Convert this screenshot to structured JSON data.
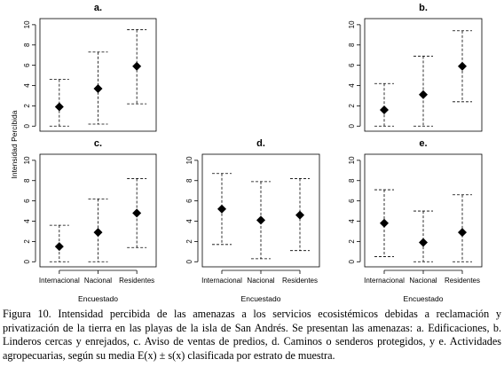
{
  "chart_data": [
    {
      "type": "scatter",
      "panel": "a.",
      "categories": [
        "Internacional",
        "Nacional",
        "Residentes"
      ],
      "mean": [
        1.9,
        3.7,
        5.9
      ],
      "upper": [
        4.6,
        7.3,
        9.5
      ],
      "lower": [
        0.0,
        0.2,
        2.2
      ],
      "ylim": [
        0,
        10
      ],
      "yticks": [
        "0",
        "2",
        "4",
        "6",
        "8",
        "10"
      ],
      "xticks": [],
      "xlabel": "",
      "ylabel": ""
    },
    {
      "type": "scatter",
      "panel": "b.",
      "categories": [
        "Internacional",
        "Nacional",
        "Residentes"
      ],
      "mean": [
        1.6,
        3.1,
        5.9
      ],
      "upper": [
        4.2,
        6.9,
        9.4
      ],
      "lower": [
        0.0,
        0.0,
        2.4
      ],
      "ylim": [
        0,
        10
      ],
      "yticks": [
        "0",
        "2",
        "4",
        "6",
        "8",
        "10"
      ],
      "xticks": [],
      "xlabel": "",
      "ylabel": ""
    },
    {
      "type": "scatter",
      "panel": "c.",
      "categories": [
        "Internacional",
        "Nacional",
        "Residentes"
      ],
      "mean": [
        1.5,
        2.9,
        4.8
      ],
      "upper": [
        3.6,
        6.2,
        8.2
      ],
      "lower": [
        0.0,
        0.0,
        1.4
      ],
      "ylim": [
        0,
        10
      ],
      "yticks": [
        "0",
        "2",
        "4",
        "6",
        "8",
        "10"
      ],
      "xticks": [
        "Internacional",
        "Nacional",
        "Residentes"
      ],
      "xlabel": "Encuestado",
      "ylabel": ""
    },
    {
      "type": "scatter",
      "panel": "d.",
      "categories": [
        "Internacional",
        "Nacional",
        "Residentes"
      ],
      "mean": [
        5.2,
        4.1,
        4.6
      ],
      "upper": [
        8.7,
        7.9,
        8.2
      ],
      "lower": [
        1.7,
        0.3,
        1.1
      ],
      "ylim": [
        0,
        10
      ],
      "yticks": [
        "0",
        "2",
        "4",
        "6",
        "8",
        "10"
      ],
      "xticks": [
        "Internacional",
        "Nacional",
        "Residentes"
      ],
      "xlabel": "Encuestado",
      "ylabel": ""
    },
    {
      "type": "scatter",
      "panel": "e.",
      "categories": [
        "Internacional",
        "Nacional",
        "Residentes"
      ],
      "mean": [
        3.8,
        1.9,
        2.9
      ],
      "upper": [
        7.1,
        5.0,
        6.6
      ],
      "lower": [
        0.5,
        0.0,
        0.0
      ],
      "ylim": [
        0,
        10
      ],
      "yticks": [
        "0",
        "2",
        "4",
        "6",
        "8",
        "10"
      ],
      "xticks": [
        "Internacional",
        "Nacional",
        "Residentes"
      ],
      "xlabel": "Encuestado",
      "ylabel": ""
    }
  ],
  "shared_ylabel": "Intensidad Percibida",
  "caption": "Figura 10. Intensidad percibida de las amenazas a los servicios ecosistémicos debidas a reclamación y privatización de la tierra en las playas de la isla de San Andrés. Se presentan las amenazas: a. Edificaciones, b. Linderos cercas y enrejados, c. Aviso de ventas de predios, d. Caminos o senderos protegidos, y e. Actividades agropecuarias, según su media E(x) ± s(x) clasificada por estrato de muestra."
}
